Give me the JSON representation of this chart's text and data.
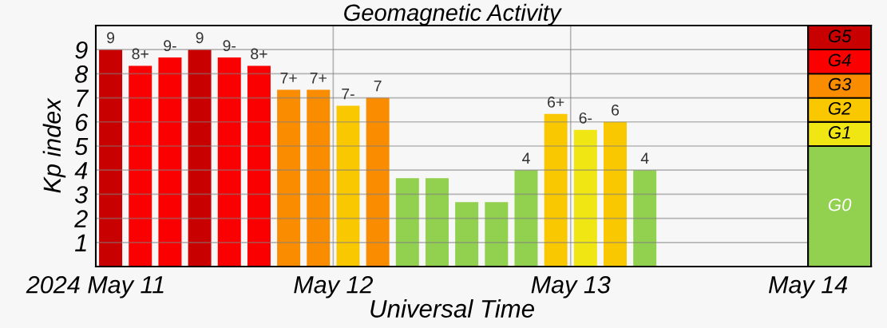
{
  "chart_data": [
    {
      "type": "bar",
      "title": "Geomagnetic Activity",
      "xlabel": "Universal Time",
      "ylabel": "Kp index",
      "x": [
        "2024-05-11T01:30",
        "2024-05-11T04:30",
        "2024-05-11T07:30",
        "2024-05-11T10:30",
        "2024-05-11T13:30",
        "2024-05-11T16:30",
        "2024-05-11T19:30",
        "2024-05-11T22:30",
        "2024-05-12T01:30",
        "2024-05-12T04:30",
        "2024-05-12T07:30",
        "2024-05-12T10:30",
        "2024-05-12T13:30",
        "2024-05-12T16:30",
        "2024-05-12T19:30",
        "2024-05-12T22:30",
        "2024-05-13T01:30",
        "2024-05-13T04:30",
        "2024-05-13T07:30"
      ],
      "values": [
        9,
        8.33,
        8.67,
        9,
        8.67,
        8.33,
        7.33,
        7.33,
        6.67,
        7,
        3.67,
        3.67,
        2.67,
        2.67,
        4,
        6.33,
        5.67,
        6,
        4
      ],
      "value_labels": [
        "9",
        "8+",
        "9-",
        "9",
        "9-",
        "8+",
        "7+",
        "7+",
        "7-",
        "7",
        null,
        null,
        null,
        null,
        "4",
        "6+",
        "6-",
        "6",
        "4"
      ],
      "colors": [
        "#c80000",
        "#fa0000",
        "#fa0000",
        "#c80000",
        "#fa0000",
        "#fa0000",
        "#fa8c00",
        "#fa8c00",
        "#fac800",
        "#fa8c00",
        "#92d050",
        "#92d050",
        "#92d050",
        "#92d050",
        "#92d050",
        "#fac800",
        "#f0e614",
        "#fac800",
        "#92d050"
      ],
      "xlim": [
        "2024-05-11",
        "2024-05-14"
      ],
      "xticks": [
        {
          "value": "2024-05-11",
          "label": "2024 May 11"
        },
        {
          "value": "2024-05-12",
          "label": "May 12"
        },
        {
          "value": "2024-05-13",
          "label": "May 13"
        },
        {
          "value": "2024-05-14",
          "label": "May 14"
        }
      ],
      "ylim": [
        0,
        10
      ],
      "yticks": [
        1,
        2,
        3,
        4,
        5,
        6,
        7,
        8,
        9
      ],
      "grid": true
    },
    {
      "type": "bar",
      "stacked": true,
      "categories": [
        null
      ],
      "ylim": [
        0,
        10
      ],
      "tick_labels": false,
      "series": [
        {
          "name": "G0",
          "color": "#92d050",
          "values": [
            5
          ]
        },
        {
          "name": "G1",
          "color": "#f0e614",
          "values": [
            1
          ]
        },
        {
          "name": "G2",
          "color": "#fac800",
          "values": [
            1
          ]
        },
        {
          "name": "G3",
          "color": "#fa8c00",
          "values": [
            1
          ]
        },
        {
          "name": "G4",
          "color": "#fa0000",
          "values": [
            1
          ]
        },
        {
          "name": "G5",
          "color": "#c80000",
          "values": [
            1
          ]
        }
      ]
    }
  ]
}
